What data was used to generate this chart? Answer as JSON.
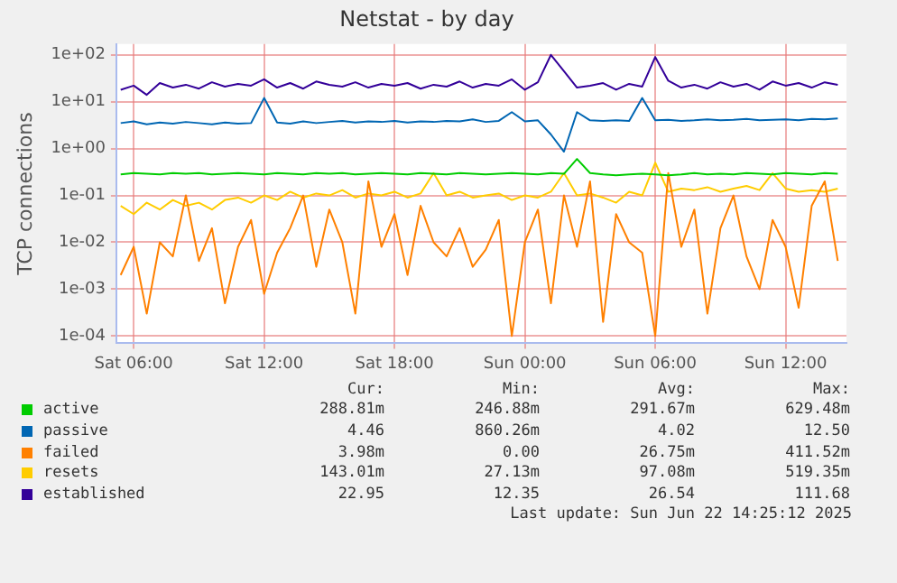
{
  "chart_data": {
    "type": "line",
    "title": "Netstat - by day",
    "ylabel": "TCP connections",
    "x": [
      "2025-06-21T05:24",
      "2025-06-21T06:00",
      "2025-06-21T06:36",
      "2025-06-21T07:12",
      "2025-06-21T07:48",
      "2025-06-21T08:24",
      "2025-06-21T09:00",
      "2025-06-21T09:36",
      "2025-06-21T10:12",
      "2025-06-21T10:48",
      "2025-06-21T11:24",
      "2025-06-21T12:00",
      "2025-06-21T12:36",
      "2025-06-21T13:12",
      "2025-06-21T13:48",
      "2025-06-21T14:24",
      "2025-06-21T15:00",
      "2025-06-21T15:36",
      "2025-06-21T16:12",
      "2025-06-21T16:48",
      "2025-06-21T17:24",
      "2025-06-21T18:00",
      "2025-06-21T18:36",
      "2025-06-21T19:12",
      "2025-06-21T19:48",
      "2025-06-21T20:24",
      "2025-06-21T21:00",
      "2025-06-21T21:36",
      "2025-06-21T22:12",
      "2025-06-21T22:48",
      "2025-06-21T23:24",
      "2025-06-22T00:00",
      "2025-06-22T00:36",
      "2025-06-22T01:12",
      "2025-06-22T01:48",
      "2025-06-22T02:24",
      "2025-06-22T03:00",
      "2025-06-22T03:36",
      "2025-06-22T04:12",
      "2025-06-22T04:48",
      "2025-06-22T05:24",
      "2025-06-22T06:00",
      "2025-06-22T06:36",
      "2025-06-22T07:12",
      "2025-06-22T07:48",
      "2025-06-22T08:24",
      "2025-06-22T09:00",
      "2025-06-22T09:36",
      "2025-06-22T10:12",
      "2025-06-22T10:48",
      "2025-06-22T11:24",
      "2025-06-22T12:00",
      "2025-06-22T12:36",
      "2025-06-22T13:12",
      "2025-06-22T13:48",
      "2025-06-22T14:24"
    ],
    "xlim": [
      "2025-06-21T05:12",
      "2025-06-22T14:48"
    ],
    "xticks": [
      {
        "value": "2025-06-21T06:00",
        "label": "Sat 06:00"
      },
      {
        "value": "2025-06-21T12:00",
        "label": "Sat 12:00"
      },
      {
        "value": "2025-06-21T18:00",
        "label": "Sat 18:00"
      },
      {
        "value": "2025-06-22T00:00",
        "label": "Sun 00:00"
      },
      {
        "value": "2025-06-22T06:00",
        "label": "Sun 06:00"
      },
      {
        "value": "2025-06-22T12:00",
        "label": "Sun 12:00"
      }
    ],
    "ylim": [
      7e-05,
      170
    ],
    "yticks": [
      {
        "value": 0.0001,
        "label": "1e-04"
      },
      {
        "value": 0.001,
        "label": "1e-03"
      },
      {
        "value": 0.01,
        "label": "1e-02"
      },
      {
        "value": 0.1,
        "label": "1e-01"
      },
      {
        "value": 1,
        "label": "1e+00"
      },
      {
        "value": 10,
        "label": "1e+01"
      },
      {
        "value": 100,
        "label": "1e+02"
      }
    ],
    "log": "y",
    "grid": true,
    "legend": "bottom",
    "marker": "none",
    "line_style": "solid",
    "series": [
      {
        "name": "active",
        "color": "#00cc00",
        "values": [
          0.28,
          0.3,
          0.29,
          0.28,
          0.3,
          0.29,
          0.3,
          0.28,
          0.29,
          0.3,
          0.29,
          0.28,
          0.3,
          0.29,
          0.28,
          0.3,
          0.29,
          0.3,
          0.28,
          0.29,
          0.3,
          0.29,
          0.28,
          0.3,
          0.29,
          0.28,
          0.3,
          0.29,
          0.28,
          0.29,
          0.3,
          0.29,
          0.28,
          0.3,
          0.29,
          0.6,
          0.3,
          0.28,
          0.27,
          0.28,
          0.29,
          0.28,
          0.27,
          0.28,
          0.3,
          0.28,
          0.29,
          0.28,
          0.3,
          0.29,
          0.28,
          0.3,
          0.29,
          0.28,
          0.3,
          0.29
        ]
      },
      {
        "name": "passive",
        "color": "#0066b3",
        "values": [
          3.5,
          3.8,
          3.3,
          3.6,
          3.4,
          3.7,
          3.5,
          3.3,
          3.6,
          3.4,
          3.5,
          12,
          3.6,
          3.4,
          3.8,
          3.5,
          3.7,
          3.9,
          3.6,
          3.8,
          3.7,
          3.9,
          3.6,
          3.8,
          3.7,
          3.9,
          3.8,
          4.2,
          3.7,
          3.9,
          6,
          3.8,
          4,
          2,
          0.86,
          6,
          4,
          3.9,
          4,
          3.9,
          12,
          4,
          4.1,
          3.9,
          4,
          4.2,
          4,
          4.1,
          4.3,
          4,
          4.1,
          4.2,
          4,
          4.3,
          4.2,
          4.4
        ]
      },
      {
        "name": "failed",
        "color": "#ff8000",
        "values": [
          0.002,
          0.008,
          0.0003,
          0.01,
          0.005,
          0.1,
          0.004,
          0.02,
          0.0005,
          0.008,
          0.03,
          0.0008,
          0.006,
          0.02,
          0.1,
          0.003,
          0.05,
          0.01,
          0.0003,
          0.2,
          0.008,
          0.04,
          0.002,
          0.06,
          0.01,
          0.005,
          0.02,
          0.003,
          0.007,
          0.03,
          0.0001,
          0.01,
          0.05,
          0.0005,
          0.1,
          0.008,
          0.2,
          0.0002,
          0.04,
          0.01,
          0.006,
          0.0001,
          0.3,
          0.008,
          0.05,
          0.0003,
          0.02,
          0.1,
          0.005,
          0.001,
          0.03,
          0.008,
          0.0004,
          0.06,
          0.2,
          0.004
        ]
      },
      {
        "name": "resets",
        "color": "#ffcc00",
        "values": [
          0.06,
          0.04,
          0.07,
          0.05,
          0.08,
          0.06,
          0.07,
          0.05,
          0.08,
          0.09,
          0.07,
          0.1,
          0.08,
          0.12,
          0.09,
          0.11,
          0.1,
          0.13,
          0.09,
          0.11,
          0.1,
          0.12,
          0.09,
          0.11,
          0.3,
          0.1,
          0.12,
          0.09,
          0.1,
          0.11,
          0.08,
          0.1,
          0.09,
          0.12,
          0.3,
          0.1,
          0.11,
          0.09,
          0.07,
          0.12,
          0.1,
          0.5,
          0.12,
          0.14,
          0.13,
          0.15,
          0.12,
          0.14,
          0.16,
          0.13,
          0.3,
          0.14,
          0.12,
          0.13,
          0.12,
          0.14
        ]
      },
      {
        "name": "established",
        "color": "#330099",
        "values": [
          18,
          22,
          14,
          25,
          20,
          23,
          19,
          26,
          21,
          24,
          22,
          30,
          20,
          25,
          19,
          27,
          23,
          21,
          26,
          20,
          24,
          22,
          25,
          19,
          23,
          21,
          27,
          20,
          24,
          22,
          30,
          18,
          26,
          100,
          45,
          20,
          22,
          25,
          18,
          24,
          21,
          90,
          28,
          20,
          23,
          19,
          26,
          21,
          24,
          18,
          27,
          22,
          25,
          20,
          26,
          23
        ]
      }
    ],
    "annotations": [
      "Cur:",
      "Min:",
      "Avg:",
      "Max:",
      "288.81m",
      "246.88m",
      "291.67m",
      "629.48m",
      "4.46",
      "860.26m",
      "4.02",
      "12.50",
      "3.98m",
      "0.00",
      "26.75m",
      "411.52m",
      "143.01m",
      "27.13m",
      "97.08m",
      "519.35m",
      "22.95",
      "12.35",
      "26.54",
      "111.68",
      "Last update: Sun Jun 22 14:25:12 2025"
    ]
  }
}
